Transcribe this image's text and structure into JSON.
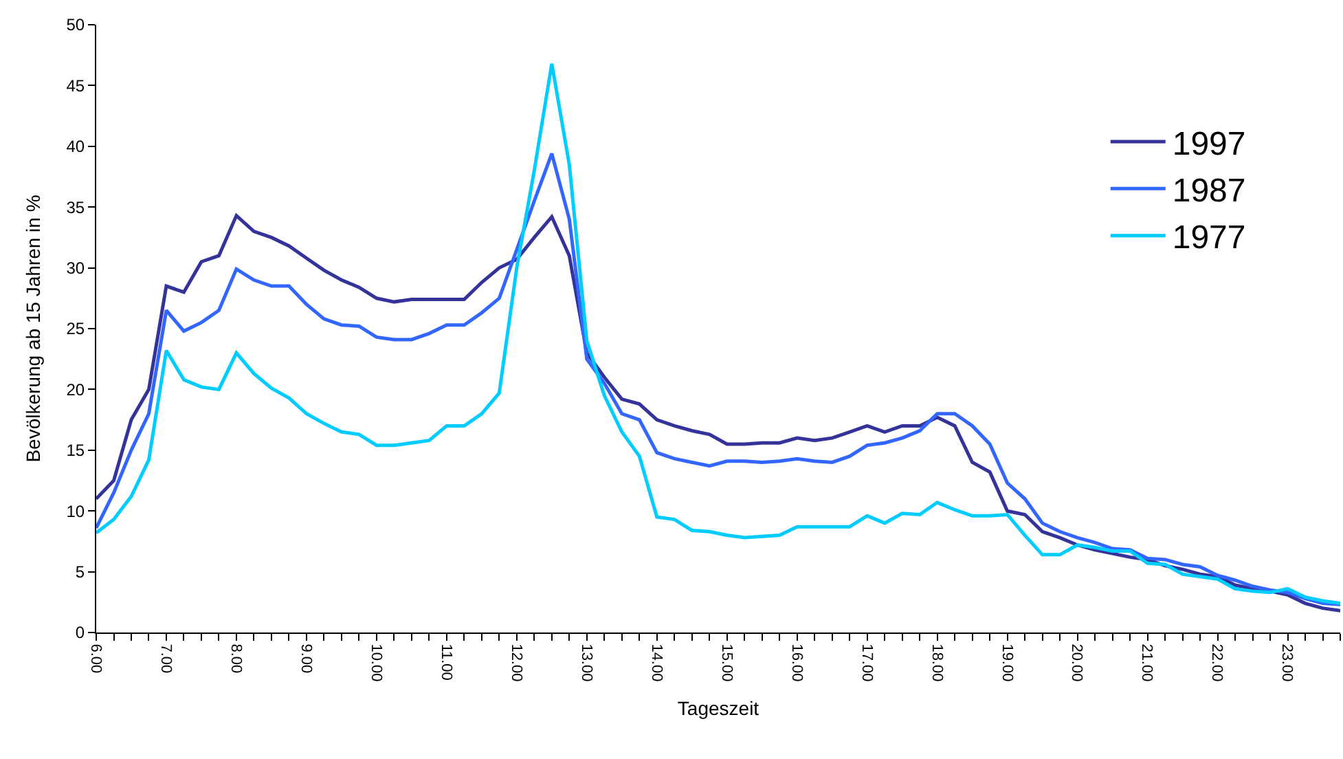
{
  "chart_data": {
    "type": "line",
    "xlabel": "Tageszeit",
    "ylabel": "Bevölkerung ab 15 Jahren in %",
    "x": [
      6.0,
      6.25,
      6.5,
      6.75,
      7.0,
      7.25,
      7.5,
      7.75,
      8.0,
      8.25,
      8.5,
      8.75,
      9.0,
      9.25,
      9.5,
      9.75,
      10.0,
      10.25,
      10.5,
      10.75,
      11.0,
      11.25,
      11.5,
      11.75,
      12.0,
      12.25,
      12.5,
      12.75,
      13.0,
      13.25,
      13.5,
      13.75,
      14.0,
      14.25,
      14.5,
      14.75,
      15.0,
      15.25,
      15.5,
      15.75,
      16.0,
      16.25,
      16.5,
      16.75,
      17.0,
      17.25,
      17.5,
      17.75,
      18.0,
      18.25,
      18.5,
      18.75,
      19.0,
      19.25,
      19.5,
      19.75,
      20.0,
      20.25,
      20.5,
      20.75,
      21.0,
      21.25,
      21.5,
      21.75,
      22.0,
      22.25,
      22.5,
      22.75,
      23.0,
      23.25,
      23.5,
      23.75
    ],
    "series": [
      {
        "name": "1997",
        "color": "#333399",
        "values": [
          11,
          12.5,
          17.5,
          20,
          28.5,
          28,
          30.5,
          31,
          34.3,
          33,
          32.5,
          31.8,
          30.8,
          29.8,
          29,
          28.4,
          27.5,
          27.2,
          27.4,
          27.4,
          27.4,
          27.4,
          28.8,
          30,
          30.7,
          32.5,
          34.2,
          31,
          23,
          21,
          19.2,
          18.8,
          17.5,
          17,
          16.6,
          16.3,
          15.5,
          15.5,
          15.6,
          15.6,
          16,
          15.8,
          16,
          16.5,
          17,
          16.5,
          17,
          17,
          17.7,
          17,
          14,
          13.2,
          10,
          9.7,
          8.3,
          7.8,
          7.2,
          6.8,
          6.5,
          6.2,
          6.0,
          5.5,
          5.2,
          4.8,
          4.6,
          3.9,
          3.6,
          3.4,
          3.1,
          2.4,
          2.0,
          1.8
        ]
      },
      {
        "name": "1987",
        "color": "#3366ff",
        "values": [
          8.6,
          11.5,
          15,
          18,
          26.5,
          24.8,
          25.5,
          26.5,
          29.9,
          29,
          28.5,
          28.5,
          27,
          25.8,
          25.3,
          25.2,
          24.3,
          24.1,
          24.1,
          24.6,
          25.3,
          25.3,
          26.3,
          27.5,
          31.5,
          35.5,
          39.4,
          34,
          22.5,
          20.5,
          18,
          17.5,
          14.8,
          14.3,
          14,
          13.7,
          14.1,
          14.1,
          14,
          14.1,
          14.3,
          14.1,
          14,
          14.5,
          15.4,
          15.6,
          16,
          16.6,
          18,
          18,
          17,
          15.5,
          12.3,
          11,
          9,
          8.3,
          7.8,
          7.4,
          6.9,
          6.8,
          6.1,
          6.0,
          5.6,
          5.4,
          4.7,
          4.3,
          3.8,
          3.5,
          3.3,
          2.8,
          2.4,
          2.3
        ]
      },
      {
        "name": "1977",
        "color": "#00ccff",
        "values": [
          8.2,
          9.3,
          11.2,
          14.2,
          23.2,
          20.8,
          20.2,
          20,
          23,
          21.3,
          20.1,
          19.3,
          18,
          17.2,
          16.5,
          16.3,
          15.4,
          15.4,
          15.6,
          15.8,
          17,
          17,
          18,
          19.7,
          30,
          38,
          46.8,
          38.5,
          24,
          19.5,
          16.5,
          14.5,
          9.5,
          9.3,
          8.4,
          8.3,
          8.0,
          7.8,
          7.9,
          8.0,
          8.7,
          8.7,
          8.7,
          8.7,
          9.6,
          9.0,
          9.8,
          9.7,
          10.7,
          10.1,
          9.6,
          9.6,
          9.7,
          8,
          6.4,
          6.4,
          7.2,
          7.0,
          6.7,
          6.7,
          5.7,
          5.6,
          4.8,
          4.6,
          4.4,
          3.6,
          3.4,
          3.3,
          3.6,
          2.9,
          2.6,
          2.4
        ]
      }
    ],
    "xlim": [
      6,
      23.75
    ],
    "xticks": [
      {
        "value": 6,
        "label": "6.00"
      },
      {
        "value": 6.25,
        "label": null
      },
      {
        "value": 6.5,
        "label": null
      },
      {
        "value": 6.75,
        "label": null
      },
      {
        "value": 7,
        "label": "7.00"
      },
      {
        "value": 7.25,
        "label": null
      },
      {
        "value": 7.5,
        "label": null
      },
      {
        "value": 7.75,
        "label": null
      },
      {
        "value": 8,
        "label": "8.00"
      },
      {
        "value": 8.25,
        "label": null
      },
      {
        "value": 8.5,
        "label": null
      },
      {
        "value": 8.75,
        "label": null
      },
      {
        "value": 9,
        "label": "9.00"
      },
      {
        "value": 9.25,
        "label": null
      },
      {
        "value": 9.5,
        "label": null
      },
      {
        "value": 9.75,
        "label": null
      },
      {
        "value": 10,
        "label": "10.00"
      },
      {
        "value": 10.25,
        "label": null
      },
      {
        "value": 10.5,
        "label": null
      },
      {
        "value": 10.75,
        "label": null
      },
      {
        "value": 11,
        "label": "11.00"
      },
      {
        "value": 11.25,
        "label": null
      },
      {
        "value": 11.5,
        "label": null
      },
      {
        "value": 11.75,
        "label": null
      },
      {
        "value": 12,
        "label": "12.00"
      },
      {
        "value": 12.25,
        "label": null
      },
      {
        "value": 12.5,
        "label": null
      },
      {
        "value": 12.75,
        "label": null
      },
      {
        "value": 13,
        "label": "13.00"
      },
      {
        "value": 13.25,
        "label": null
      },
      {
        "value": 13.5,
        "label": null
      },
      {
        "value": 13.75,
        "label": null
      },
      {
        "value": 14,
        "label": "14.00"
      },
      {
        "value": 14.25,
        "label": null
      },
      {
        "value": 14.5,
        "label": null
      },
      {
        "value": 14.75,
        "label": null
      },
      {
        "value": 15,
        "label": "15.00"
      },
      {
        "value": 15.25,
        "label": null
      },
      {
        "value": 15.5,
        "label": null
      },
      {
        "value": 15.75,
        "label": null
      },
      {
        "value": 16,
        "label": "16.00"
      },
      {
        "value": 16.25,
        "label": null
      },
      {
        "value": 16.5,
        "label": null
      },
      {
        "value": 16.75,
        "label": null
      },
      {
        "value": 17,
        "label": "17.00"
      },
      {
        "value": 17.25,
        "label": null
      },
      {
        "value": 17.5,
        "label": null
      },
      {
        "value": 17.75,
        "label": null
      },
      {
        "value": 18,
        "label": "18.00"
      },
      {
        "value": 18.25,
        "label": null
      },
      {
        "value": 18.5,
        "label": null
      },
      {
        "value": 18.75,
        "label": null
      },
      {
        "value": 19,
        "label": "19.00"
      },
      {
        "value": 19.25,
        "label": null
      },
      {
        "value": 19.5,
        "label": null
      },
      {
        "value": 19.75,
        "label": null
      },
      {
        "value": 20,
        "label": "20.00"
      },
      {
        "value": 20.25,
        "label": null
      },
      {
        "value": 20.5,
        "label": null
      },
      {
        "value": 20.75,
        "label": null
      },
      {
        "value": 21,
        "label": "21.00"
      },
      {
        "value": 21.25,
        "label": null
      },
      {
        "value": 21.5,
        "label": null
      },
      {
        "value": 21.75,
        "label": null
      },
      {
        "value": 22,
        "label": "22.00"
      },
      {
        "value": 22.25,
        "label": null
      },
      {
        "value": 22.5,
        "label": null
      },
      {
        "value": 22.75,
        "label": null
      },
      {
        "value": 23,
        "label": "23.00"
      },
      {
        "value": 23.25,
        "label": null
      },
      {
        "value": 23.5,
        "label": null
      },
      {
        "value": 23.75,
        "label": null
      }
    ],
    "ylim": [
      0,
      50
    ],
    "yticks": [
      0,
      5,
      10,
      15,
      20,
      25,
      30,
      35,
      40,
      45,
      50
    ],
    "legend": "right",
    "marker": "none",
    "line_style": "solid"
  }
}
